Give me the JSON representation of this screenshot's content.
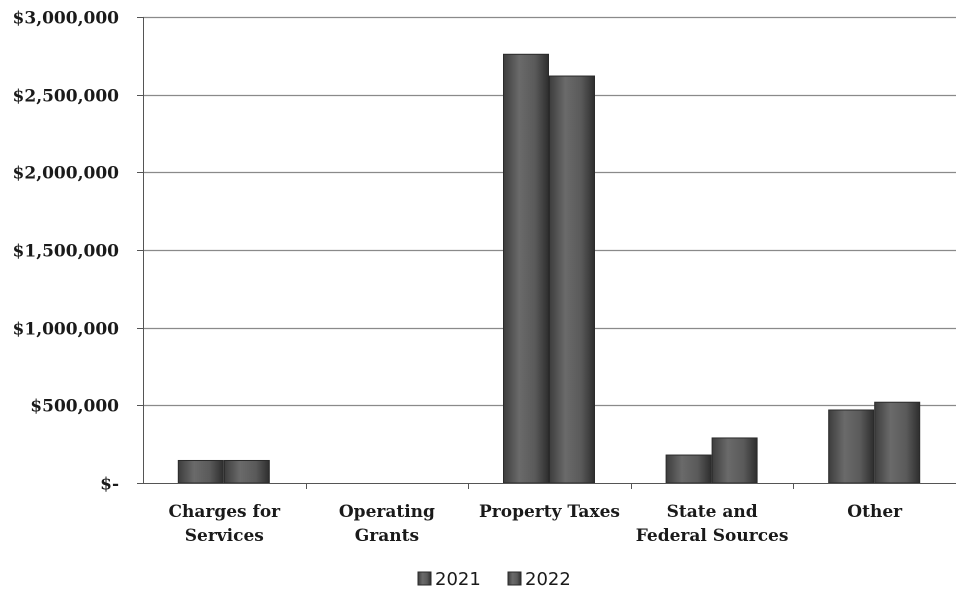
{
  "chart_data": {
    "type": "bar",
    "categories": [
      [
        "Charges for",
        "Services"
      ],
      [
        "Operating",
        "Grants"
      ],
      [
        "Property Taxes"
      ],
      [
        "State and",
        "Federal Sources"
      ],
      [
        "Other"
      ]
    ],
    "series": [
      {
        "name": "2021",
        "values": [
          145000,
          0,
          2760000,
          180000,
          470000
        ]
      },
      {
        "name": "2022",
        "values": [
          145000,
          0,
          2620000,
          290000,
          520000
        ]
      }
    ],
    "ylim": [
      0,
      3000000
    ],
    "yticks": [
      0,
      500000,
      1000000,
      1500000,
      2000000,
      2500000,
      3000000
    ],
    "ytick_labels": [
      "$-",
      "$500,000",
      "$1,000,000",
      "$1,500,000",
      "$2,000,000",
      "$2,500,000",
      "$3,000,000"
    ],
    "grid": true,
    "legend_position": "bottom-center",
    "bar_color": "#555555"
  }
}
